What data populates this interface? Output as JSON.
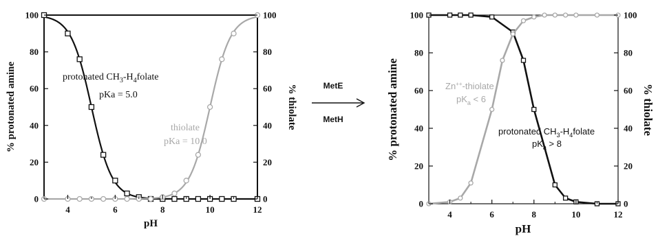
{
  "colors": {
    "black": "#111111",
    "gray": "#a8a8a8",
    "bg": "#ffffff"
  },
  "arrow": {
    "label_top": "MetE",
    "label_bottom": "MetH"
  },
  "chart_data": [
    {
      "type": "line",
      "xlabel": "pH",
      "ylabel_left": "% protonated amine",
      "ylabel_right": "% thiolate",
      "xlim": [
        3,
        12
      ],
      "ylim": [
        0,
        100
      ],
      "x_ticks": [
        "4",
        "6",
        "8",
        "10",
        "12"
      ],
      "y_ticks": [
        "0",
        "20",
        "40",
        "60",
        "80",
        "100"
      ],
      "annotations": [
        {
          "text": "protonated CH",
          "sub": "3",
          "text2": "-H",
          "sub2": "4",
          "text3": "folate",
          "color": "black"
        },
        {
          "text": "pKa = 5.0",
          "color": "black"
        },
        {
          "text": "thiolate",
          "color": "gray"
        },
        {
          "text": "pKa = 10.0",
          "color": "gray"
        }
      ],
      "series": [
        {
          "color": "black",
          "marker": "square",
          "x": [
            3,
            4,
            4.5,
            5,
            5.5,
            6,
            6.5,
            7,
            7.5,
            8,
            8.5,
            9,
            9.5,
            10,
            10.5,
            11,
            12
          ],
          "y": [
            100,
            90,
            76,
            50,
            24,
            10,
            3,
            1,
            0,
            0,
            0,
            0,
            0,
            0,
            0,
            0,
            0
          ],
          "curve_pka": 5.0,
          "curve_dir": "down"
        },
        {
          "color": "gray",
          "marker": "circle",
          "x": [
            3,
            4,
            4.5,
            5,
            5.5,
            6,
            6.5,
            7,
            7.5,
            8,
            8.5,
            9,
            9.5,
            10,
            10.5,
            11,
            12
          ],
          "y": [
            0,
            0,
            0,
            0,
            0,
            0,
            0,
            0,
            0,
            1,
            3,
            10,
            24,
            50,
            76,
            90,
            100
          ],
          "curve_pka": 10.0,
          "curve_dir": "up"
        }
      ]
    },
    {
      "type": "line",
      "xlabel": "pH",
      "ylabel_left": "% protonated amine",
      "ylabel_right": "% thiolate",
      "xlim": [
        3,
        12
      ],
      "ylim": [
        0,
        100
      ],
      "x_ticks": [
        "4",
        "6",
        "8",
        "10",
        "12"
      ],
      "y_ticks": [
        "0",
        "20",
        "40",
        "60",
        "80",
        "100"
      ],
      "annotations": [
        {
          "text": "Zn",
          "sup": "++",
          "text2": "-thiolate",
          "color": "gray"
        },
        {
          "text": "pK",
          "sub": "a",
          "text2": " < 6",
          "color": "gray"
        },
        {
          "text": "protonated CH",
          "sub": "3",
          "text2": "-H",
          "sub2": "4",
          "text3": "folate",
          "color": "black"
        },
        {
          "text": "pK",
          "sub": "a",
          "text2": " > 8",
          "color": "black"
        }
      ],
      "series": [
        {
          "color": "black",
          "marker": "square",
          "x": [
            3,
            4,
            4.5,
            5,
            6,
            7,
            7.5,
            8,
            9,
            9.5,
            10,
            11,
            12
          ],
          "y": [
            100,
            100,
            100,
            100,
            99,
            91,
            76,
            50,
            10,
            3,
            1,
            0,
            0
          ],
          "curve_pka": 8.0,
          "curve_dir": "down"
        },
        {
          "color": "gray",
          "marker": "circle",
          "x": [
            3,
            4,
            4.5,
            5,
            6,
            6.5,
            7,
            7.5,
            8,
            8.5,
            9,
            9.5,
            10,
            11,
            12
          ],
          "y": [
            0,
            1,
            3,
            11,
            50,
            76,
            90,
            97,
            99,
            100,
            100,
            100,
            100,
            100,
            100
          ],
          "curve_pka": 6.0,
          "curve_dir": "up"
        }
      ]
    }
  ]
}
